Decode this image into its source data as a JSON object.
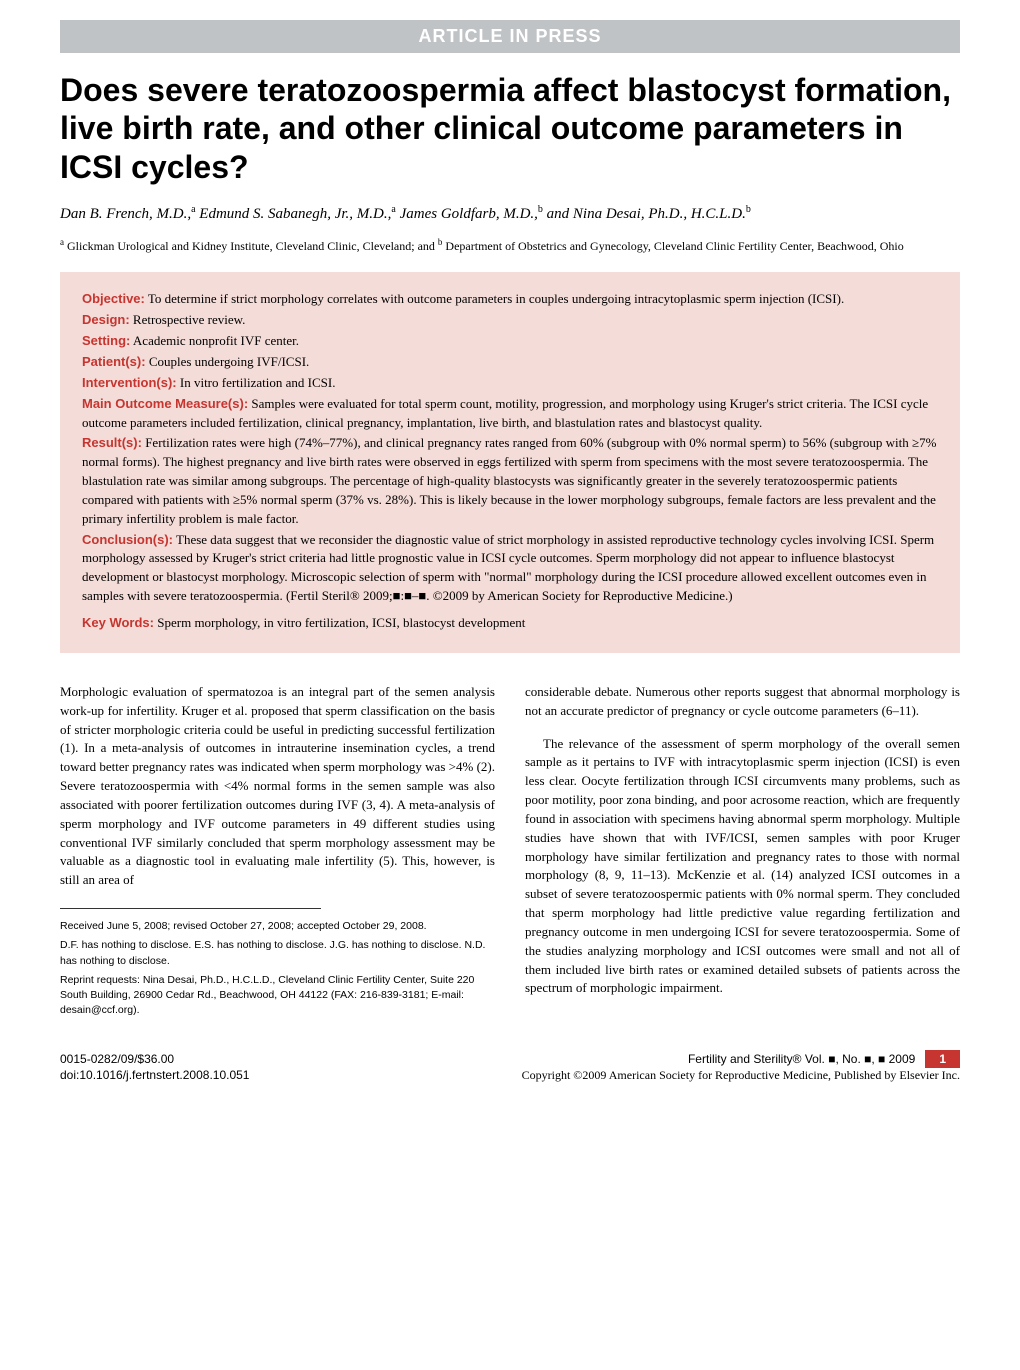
{
  "banner": "ARTICLE IN PRESS",
  "title": "Does severe teratozoospermia affect blastocyst formation, live birth rate, and other clinical outcome parameters in ICSI cycles?",
  "authors_html": "Dan B. French, M.D.,<sup>a</sup> Edmund S. Sabanegh, Jr., M.D.,<sup>a</sup> James Goldfarb, M.D.,<sup>b</sup> and Nina Desai, Ph.D., H.C.L.D.<sup>b</sup>",
  "affiliations_html": "<sup>a</sup> Glickman Urological and Kidney Institute, Cleveland Clinic, Cleveland; and <sup>b</sup> Department of Obstetrics and Gynecology, Cleveland Clinic Fertility Center, Beachwood, Ohio",
  "abstract": {
    "objective": {
      "label": "Objective:",
      "text": " To determine if strict morphology correlates with outcome parameters in couples undergoing intracytoplasmic sperm injection (ICSI)."
    },
    "design": {
      "label": "Design:",
      "text": " Retrospective review."
    },
    "setting": {
      "label": "Setting:",
      "text": " Academic nonprofit IVF center."
    },
    "patients": {
      "label": "Patient(s):",
      "text": " Couples undergoing IVF/ICSI."
    },
    "interventions": {
      "label": "Intervention(s):",
      "text": " In vitro fertilization and ICSI."
    },
    "measures": {
      "label": "Main Outcome Measure(s):",
      "text": " Samples were evaluated for total sperm count, motility, progression, and morphology using Kruger's strict criteria. The ICSI cycle outcome parameters included fertilization, clinical pregnancy, implantation, live birth, and blastulation rates and blastocyst quality."
    },
    "results": {
      "label": "Result(s):",
      "text": " Fertilization rates were high (74%–77%), and clinical pregnancy rates ranged from 60% (subgroup with 0% normal sperm) to 56% (subgroup with ≥7% normal forms). The highest pregnancy and live birth rates were observed in eggs fertilized with sperm from specimens with the most severe teratozoospermia. The blastulation rate was similar among subgroups. The percentage of high-quality blastocysts was significantly greater in the severely teratozoospermic patients compared with patients with ≥5% normal sperm (37% vs. 28%). This is likely because in the lower morphology subgroups, female factors are less prevalent and the primary infertility problem is male factor."
    },
    "conclusions": {
      "label": "Conclusion(s):",
      "text": " These data suggest that we reconsider the diagnostic value of strict morphology in assisted reproductive technology cycles involving ICSI. Sperm morphology assessed by Kruger's strict criteria had little prognostic value in ICSI cycle outcomes. Sperm morphology did not appear to influence blastocyst development or blastocyst morphology. Microscopic selection of sperm with \"normal\" morphology during the ICSI procedure allowed excellent outcomes even in samples with severe teratozoospermia. (Fertil Steril® 2009;■:■–■. ©2009 by American Society for Reproductive Medicine.)"
    },
    "keywords": {
      "label": "Key Words:",
      "text": " Sperm morphology, in vitro fertilization, ICSI, blastocyst development"
    }
  },
  "body": {
    "col1_p1": "Morphologic evaluation of spermatozoa is an integral part of the semen analysis work-up for infertility. Kruger et al. proposed that sperm classification on the basis of stricter morphologic criteria could be useful in predicting successful fertilization (1). In a meta-analysis of outcomes in intrauterine insemination cycles, a trend toward better pregnancy rates was indicated when sperm morphology was >4% (2). Severe teratozoospermia with <4% normal forms in the semen sample was also associated with poorer fertilization outcomes during IVF (3, 4). A meta-analysis of sperm morphology and IVF outcome parameters in 49 different studies using conventional IVF similarly concluded that sperm morphology assessment may be valuable as a diagnostic tool in evaluating male infertility (5). This, however, is still an area of",
    "col2_p1": "considerable debate. Numerous other reports suggest that abnormal morphology is not an accurate predictor of pregnancy or cycle outcome parameters (6–11).",
    "col2_p2": "The relevance of the assessment of sperm morphology of the overall semen sample as it pertains to IVF with intracytoplasmic sperm injection (ICSI) is even less clear. Oocyte fertilization through ICSI circumvents many problems, such as poor motility, poor zona binding, and poor acrosome reaction, which are frequently found in association with specimens having abnormal sperm morphology. Multiple studies have shown that with IVF/ICSI, semen samples with poor Kruger morphology have similar fertilization and pregnancy rates to those with normal morphology (8, 9, 11–13). McKenzie et al. (14) analyzed ICSI outcomes in a subset of severe teratozoospermic patients with 0% normal sperm. They concluded that sperm morphology had little predictive value regarding fertilization and pregnancy outcome in men undergoing ICSI for severe teratozoospermia. Some of the studies analyzing morphology and ICSI outcomes were small and not all of them included live birth rates or examined detailed subsets of patients across the spectrum of morphologic impairment."
  },
  "footnotes": {
    "received": "Received June 5, 2008; revised October 27, 2008; accepted October 29, 2008.",
    "disclosures": "D.F. has nothing to disclose. E.S. has nothing to disclose. J.G. has nothing to disclose. N.D. has nothing to disclose.",
    "reprints": "Reprint requests: Nina Desai, Ph.D., H.C.L.D., Cleveland Clinic Fertility Center, Suite 220 South Building, 26900 Cedar Rd., Beachwood, OH 44122 (FAX: 216-839-3181; E-mail: desain@ccf.org)."
  },
  "footer": {
    "issn": "0015-0282/09/$36.00",
    "doi": "doi:10.1016/j.fertnstert.2008.10.051",
    "journal": "Fertility and Sterility® Vol. ■, No. ■, ■ 2009",
    "copyright": "Copyright ©2009 American Society for Reproductive Medicine, Published by Elsevier Inc.",
    "pagenum": "1"
  },
  "colors": {
    "banner_bg": "#c0c3c6",
    "banner_fg": "#ffffff",
    "abstract_bg": "#f4dcd8",
    "label_color": "#c63530",
    "link_color": "#3366cc",
    "pagenum_bg": "#c63530"
  }
}
